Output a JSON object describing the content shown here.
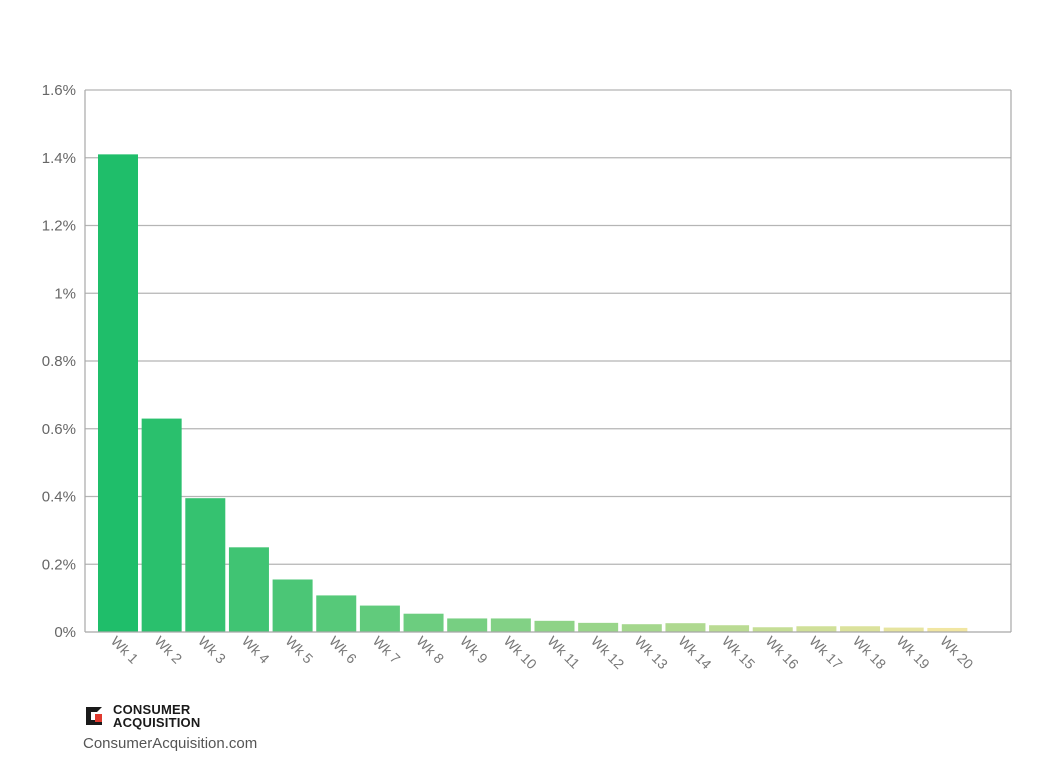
{
  "chart_data": {
    "type": "bar",
    "title": "",
    "xlabel": "",
    "ylabel": "",
    "categories": [
      "Wk 1",
      "Wk 2",
      "Wk 3",
      "Wk 4",
      "Wk 5",
      "Wk 6",
      "Wk 7",
      "Wk 8",
      "Wk 9",
      "Wk 10",
      "Wk 11",
      "Wk 12",
      "Wk 13",
      "Wk 14",
      "Wk 15",
      "Wk 16",
      "Wk 17",
      "Wk 18",
      "Wk 19",
      "Wk 20"
    ],
    "values": [
      1.41,
      0.63,
      0.395,
      0.25,
      0.155,
      0.108,
      0.078,
      0.054,
      0.04,
      0.04,
      0.033,
      0.027,
      0.023,
      0.026,
      0.02,
      0.014,
      0.017,
      0.017,
      0.013,
      0.012
    ],
    "unit": "%",
    "ylim": [
      0,
      1.6
    ],
    "yticks": [
      0,
      0.2,
      0.4,
      0.6,
      0.8,
      1,
      1.2,
      1.4,
      1.6
    ],
    "ytick_labels": [
      "0%",
      "0.2%",
      "0.4%",
      "0.6%",
      "0.8%",
      "1%",
      "1.2%",
      "1.4%",
      "1.6%"
    ],
    "grid": true,
    "legend": "none",
    "colors": {
      "gradient_start": "#1fbe6a",
      "gradient_end": "#f1e6a2",
      "grid": "#b5b5b5",
      "axis": "#a8a8a8"
    }
  },
  "branding": {
    "name_line1": "CONSUMER",
    "name_line2": "ACQUISITION",
    "url": "ConsumerAcquisition.com",
    "logo_icon": "consumer-acquisition-logo-icon",
    "logo_colors": {
      "dark": "#1a1a1a",
      "accent": "#e03a2f"
    }
  }
}
